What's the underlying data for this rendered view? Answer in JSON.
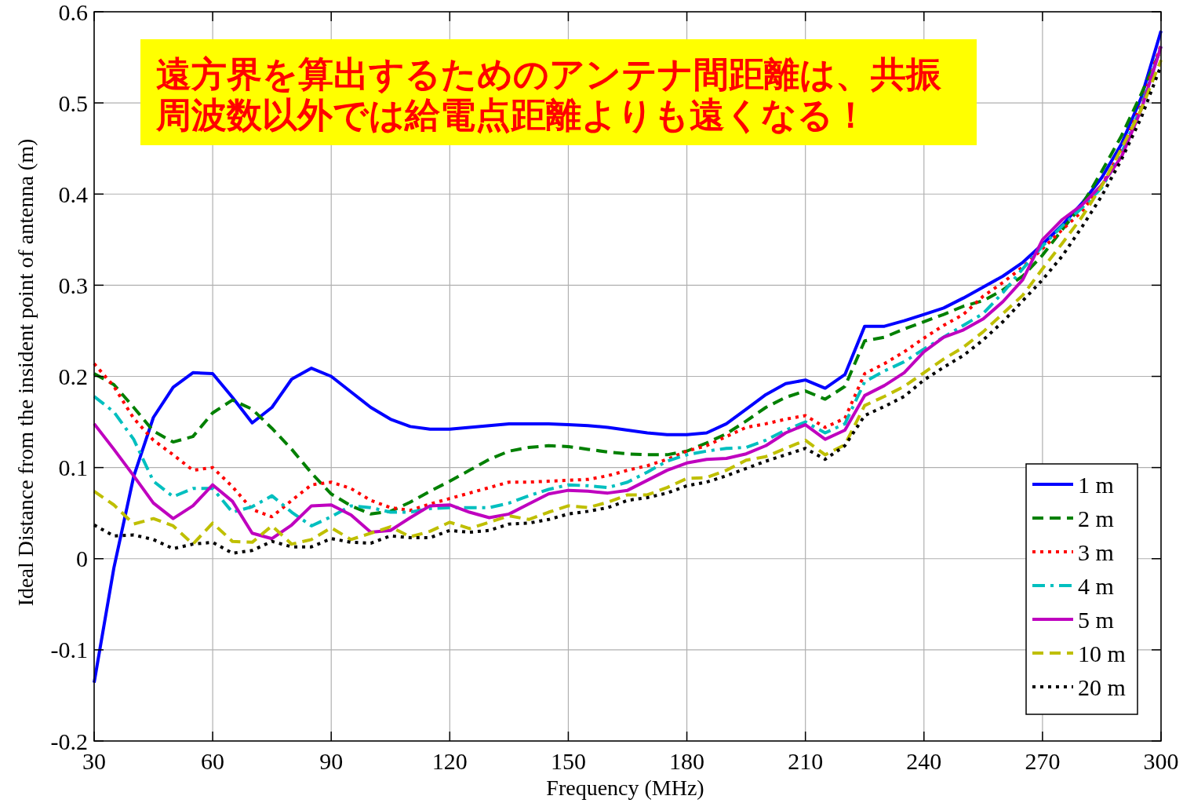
{
  "chart_data": {
    "type": "line",
    "xlabel": "Frequency (MHz)",
    "ylabel": "Ideal Distance from the insident point of antenna (m)",
    "annotations": [
      "遠方界を算出するためのアンテナ間距離は、共振周波数以外では給電点距離よりも遠くなる！"
    ],
    "x": [
      30,
      35,
      40,
      45,
      50,
      55,
      60,
      65,
      70,
      75,
      80,
      85,
      90,
      95,
      100,
      105,
      110,
      115,
      120,
      125,
      130,
      135,
      140,
      145,
      150,
      155,
      160,
      165,
      170,
      175,
      180,
      185,
      190,
      195,
      200,
      205,
      210,
      215,
      220,
      225,
      230,
      235,
      240,
      245,
      250,
      255,
      260,
      265,
      270,
      275,
      280,
      285,
      290,
      295,
      300
    ],
    "series": [
      {
        "name": "1 m",
        "color": "#0000ff",
        "line_style": "solid",
        "values": [
          -0.136,
          -0.01,
          0.09,
          0.155,
          0.188,
          0.204,
          0.203,
          0.177,
          0.149,
          0.166,
          0.197,
          0.209,
          0.2,
          0.183,
          0.166,
          0.153,
          0.145,
          0.142,
          0.142,
          0.144,
          0.146,
          0.148,
          0.148,
          0.148,
          0.147,
          0.146,
          0.144,
          0.141,
          0.138,
          0.136,
          0.136,
          0.138,
          0.148,
          0.164,
          0.18,
          0.192,
          0.196,
          0.187,
          0.202,
          0.255,
          0.255,
          0.261,
          0.268,
          0.275,
          0.286,
          0.298,
          0.31,
          0.325,
          0.345,
          0.366,
          0.39,
          0.418,
          0.455,
          0.506,
          0.579
        ]
      },
      {
        "name": "2 m",
        "color": "#008000",
        "line_style": "dashed",
        "values": [
          0.203,
          0.191,
          0.166,
          0.14,
          0.128,
          0.134,
          0.16,
          0.174,
          0.164,
          0.143,
          0.12,
          0.094,
          0.071,
          0.058,
          0.049,
          0.052,
          0.062,
          0.074,
          0.085,
          0.097,
          0.109,
          0.118,
          0.122,
          0.124,
          0.123,
          0.12,
          0.117,
          0.115,
          0.114,
          0.114,
          0.118,
          0.127,
          0.137,
          0.151,
          0.166,
          0.177,
          0.184,
          0.175,
          0.189,
          0.239,
          0.243,
          0.252,
          0.26,
          0.268,
          0.277,
          0.283,
          0.295,
          0.31,
          0.333,
          0.361,
          0.388,
          0.425,
          0.464,
          0.51,
          0.559
        ]
      },
      {
        "name": "3 m",
        "color": "#ff0000",
        "line_style": "dotted",
        "values": [
          0.214,
          0.189,
          0.154,
          0.13,
          0.114,
          0.097,
          0.1,
          0.079,
          0.054,
          0.046,
          0.064,
          0.081,
          0.084,
          0.077,
          0.064,
          0.056,
          0.053,
          0.06,
          0.066,
          0.072,
          0.078,
          0.084,
          0.084,
          0.085,
          0.086,
          0.087,
          0.091,
          0.097,
          0.102,
          0.109,
          0.118,
          0.124,
          0.134,
          0.144,
          0.148,
          0.153,
          0.157,
          0.144,
          0.154,
          0.203,
          0.214,
          0.227,
          0.242,
          0.256,
          0.268,
          0.288,
          0.303,
          0.32,
          0.34,
          0.361,
          0.381,
          0.41,
          0.448,
          0.498,
          0.564
        ]
      },
      {
        "name": "4 m",
        "color": "#00bfbf",
        "line_style": "dashdot",
        "values": [
          0.178,
          0.161,
          0.131,
          0.085,
          0.068,
          0.077,
          0.077,
          0.051,
          0.057,
          0.069,
          0.051,
          0.036,
          0.046,
          0.058,
          0.056,
          0.051,
          0.051,
          0.055,
          0.056,
          0.056,
          0.056,
          0.061,
          0.069,
          0.076,
          0.081,
          0.08,
          0.078,
          0.084,
          0.095,
          0.107,
          0.114,
          0.118,
          0.121,
          0.122,
          0.13,
          0.141,
          0.15,
          0.138,
          0.148,
          0.194,
          0.206,
          0.216,
          0.23,
          0.243,
          0.256,
          0.269,
          0.292,
          0.318,
          0.343,
          0.365,
          0.385,
          0.407,
          0.445,
          0.496,
          0.562
        ]
      },
      {
        "name": "5 m",
        "color": "#bf00bf",
        "line_style": "solid",
        "values": [
          0.148,
          0.12,
          0.091,
          0.061,
          0.044,
          0.058,
          0.081,
          0.063,
          0.028,
          0.022,
          0.037,
          0.058,
          0.059,
          0.048,
          0.029,
          0.031,
          0.045,
          0.058,
          0.059,
          0.051,
          0.045,
          0.049,
          0.06,
          0.071,
          0.075,
          0.074,
          0.072,
          0.075,
          0.086,
          0.097,
          0.105,
          0.109,
          0.11,
          0.115,
          0.124,
          0.138,
          0.147,
          0.131,
          0.141,
          0.179,
          0.19,
          0.204,
          0.227,
          0.243,
          0.251,
          0.263,
          0.282,
          0.306,
          0.35,
          0.372,
          0.388,
          0.41,
          0.441,
          0.493,
          0.562
        ]
      },
      {
        "name": "10 m",
        "color": "#bfbf00",
        "line_style": "dashed",
        "values": [
          0.074,
          0.059,
          0.038,
          0.044,
          0.036,
          0.016,
          0.039,
          0.019,
          0.018,
          0.036,
          0.016,
          0.021,
          0.034,
          0.021,
          0.028,
          0.035,
          0.024,
          0.03,
          0.04,
          0.033,
          0.04,
          0.047,
          0.043,
          0.051,
          0.058,
          0.056,
          0.062,
          0.07,
          0.07,
          0.078,
          0.088,
          0.089,
          0.097,
          0.108,
          0.112,
          0.121,
          0.13,
          0.114,
          0.125,
          0.168,
          0.178,
          0.189,
          0.204,
          0.219,
          0.232,
          0.249,
          0.269,
          0.289,
          0.318,
          0.346,
          0.375,
          0.409,
          0.45,
          0.493,
          0.547
        ]
      },
      {
        "name": "20 m",
        "color": "#000000",
        "line_style": "dotted",
        "values": [
          0.037,
          0.025,
          0.026,
          0.021,
          0.011,
          0.016,
          0.018,
          0.006,
          0.009,
          0.019,
          0.013,
          0.013,
          0.022,
          0.018,
          0.017,
          0.025,
          0.023,
          0.023,
          0.031,
          0.029,
          0.031,
          0.038,
          0.039,
          0.043,
          0.049,
          0.052,
          0.056,
          0.064,
          0.067,
          0.072,
          0.08,
          0.084,
          0.091,
          0.099,
          0.107,
          0.114,
          0.121,
          0.109,
          0.124,
          0.157,
          0.167,
          0.178,
          0.196,
          0.21,
          0.223,
          0.24,
          0.26,
          0.283,
          0.306,
          0.332,
          0.364,
          0.398,
          0.438,
          0.484,
          0.541
        ]
      }
    ],
    "xlim": [
      30,
      300
    ],
    "ylim": [
      -0.2,
      0.6
    ],
    "xticks": [
      30,
      60,
      90,
      120,
      150,
      180,
      210,
      240,
      270,
      300
    ],
    "yticks": [
      -0.2,
      -0.1,
      0,
      0.1,
      0.2,
      0.3,
      0.4,
      0.5,
      0.6
    ],
    "grid": true,
    "legend": "bottom right"
  }
}
